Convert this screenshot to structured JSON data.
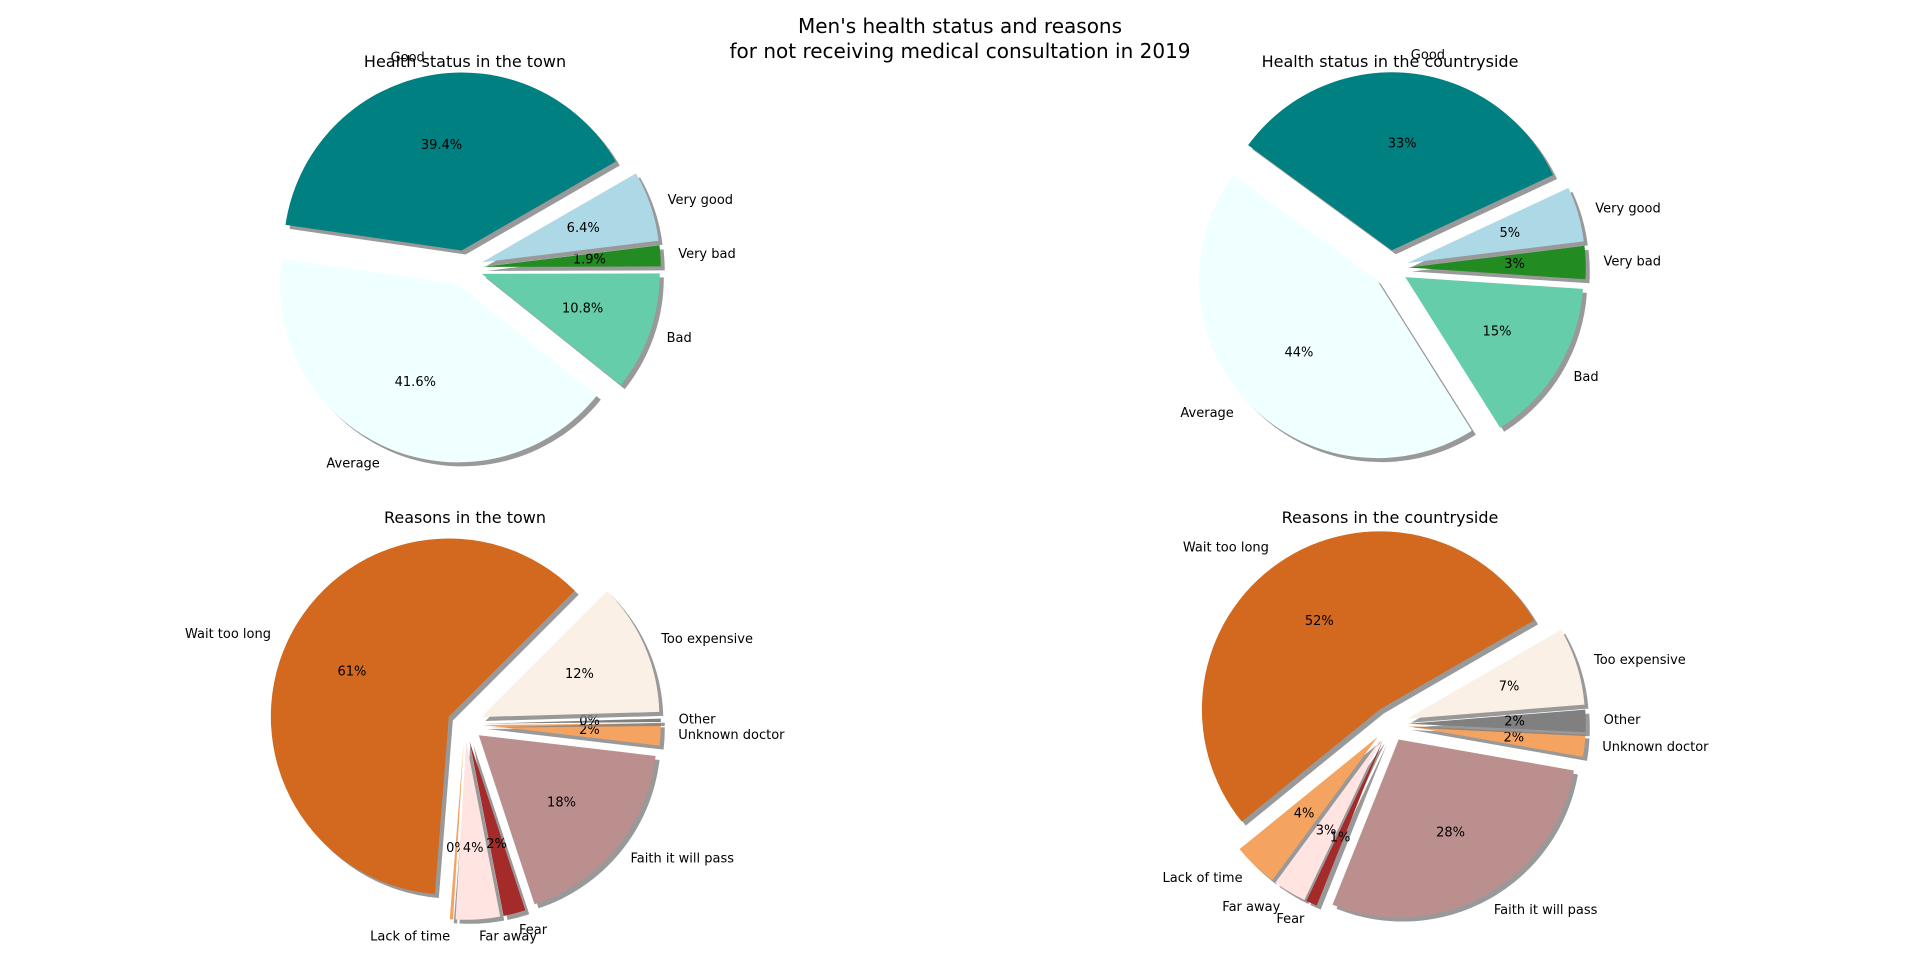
{
  "title": "Men's health status and reasons\nfor not receiving medical consultation in 2019",
  "chart_data": [
    {
      "type": "pie",
      "title": "Health status in the town",
      "start_angle_deg": 30,
      "slices": [
        {
          "label": "Good",
          "value": 39.4,
          "pct": "39.4%",
          "color": "#008080",
          "explode": 0.1
        },
        {
          "label": "Average",
          "value": 41.6,
          "pct": "41.6%",
          "color": "#f0ffff",
          "explode": 0.1
        },
        {
          "label": "Bad",
          "value": 10.8,
          "pct": "10.8%",
          "color": "#66cdaa",
          "explode": 0.1
        },
        {
          "label": "Very bad",
          "value": 1.9,
          "pct": "1.9%",
          "color": "#228b22",
          "explode": 0.1
        },
        {
          "label": "Very good",
          "value": 6.4,
          "pct": "6.4%",
          "color": "#add8e6",
          "explode": 0.1
        }
      ]
    },
    {
      "type": "pie",
      "title": "Health status in the countryside",
      "start_angle_deg": 25,
      "slices": [
        {
          "label": "Good",
          "value": 33,
          "pct": "33%",
          "color": "#008080",
          "explode": 0.1
        },
        {
          "label": "Average",
          "value": 44,
          "pct": "44%",
          "color": "#f0ffff",
          "explode": 0.1
        },
        {
          "label": "Bad",
          "value": 15,
          "pct": "15%",
          "color": "#66cdaa",
          "explode": 0.1
        },
        {
          "label": "Very bad",
          "value": 3,
          "pct": "3%",
          "color": "#228b22",
          "explode": 0.1
        },
        {
          "label": "Very good",
          "value": 5,
          "pct": "5%",
          "color": "#add8e6",
          "explode": 0.1
        }
      ]
    },
    {
      "type": "pie",
      "title": "Reasons in the town",
      "start_angle_deg": 45,
      "slices": [
        {
          "label": "Wait too long",
          "value": 61,
          "pct": "61%",
          "color": "#d2691e",
          "explode": 0.1
        },
        {
          "label": "Lack of time",
          "value": 0.3,
          "pct": "0%",
          "color": "#f4a460",
          "explode": 0.1
        },
        {
          "label": "Far away",
          "value": 4,
          "pct": "4%",
          "color": "#ffe4e1",
          "explode": 0.1
        },
        {
          "label": "Fear",
          "value": 2,
          "pct": "2%",
          "color": "#a52a2a",
          "explode": 0.1
        },
        {
          "label": "Faith it will pass",
          "value": 18,
          "pct": "18%",
          "color": "#bc8f8f",
          "explode": 0.1
        },
        {
          "label": "Unknown doctor",
          "value": 2,
          "pct": "2%",
          "color": "#f4a460",
          "explode": 0.1
        },
        {
          "label": "Other",
          "value": 0.3,
          "pct": "0%",
          "color": "#808080",
          "explode": 0.1
        },
        {
          "label": "Too expensive",
          "value": 12,
          "pct": "12%",
          "color": "#faf0e6",
          "explode": 0.1
        }
      ]
    },
    {
      "type": "pie",
      "title": "Reasons in the countryside",
      "start_angle_deg": 30,
      "slices": [
        {
          "label": "Wait too long",
          "value": 52,
          "pct": "52%",
          "color": "#d2691e",
          "explode": 0.1
        },
        {
          "label": "Lack of time",
          "value": 4,
          "pct": "4%",
          "color": "#f4a460",
          "explode": 0.1
        },
        {
          "label": "Far away",
          "value": 3,
          "pct": "3%",
          "color": "#ffe4e1",
          "explode": 0.1
        },
        {
          "label": "Fear",
          "value": 1,
          "pct": "1%",
          "color": "#a52a2a",
          "explode": 0.1
        },
        {
          "label": "Faith it will pass",
          "value": 28,
          "pct": "28%",
          "color": "#bc8f8f",
          "explode": 0.1
        },
        {
          "label": "Unknown doctor",
          "value": 2,
          "pct": "2%",
          "color": "#f4a460",
          "explode": 0.1
        },
        {
          "label": "Other",
          "value": 2,
          "pct": "2%",
          "color": "#808080",
          "explode": 0.1
        },
        {
          "label": "Too expensive",
          "value": 7,
          "pct": "7%",
          "color": "#faf0e6",
          "explode": 0.1
        }
      ]
    }
  ]
}
